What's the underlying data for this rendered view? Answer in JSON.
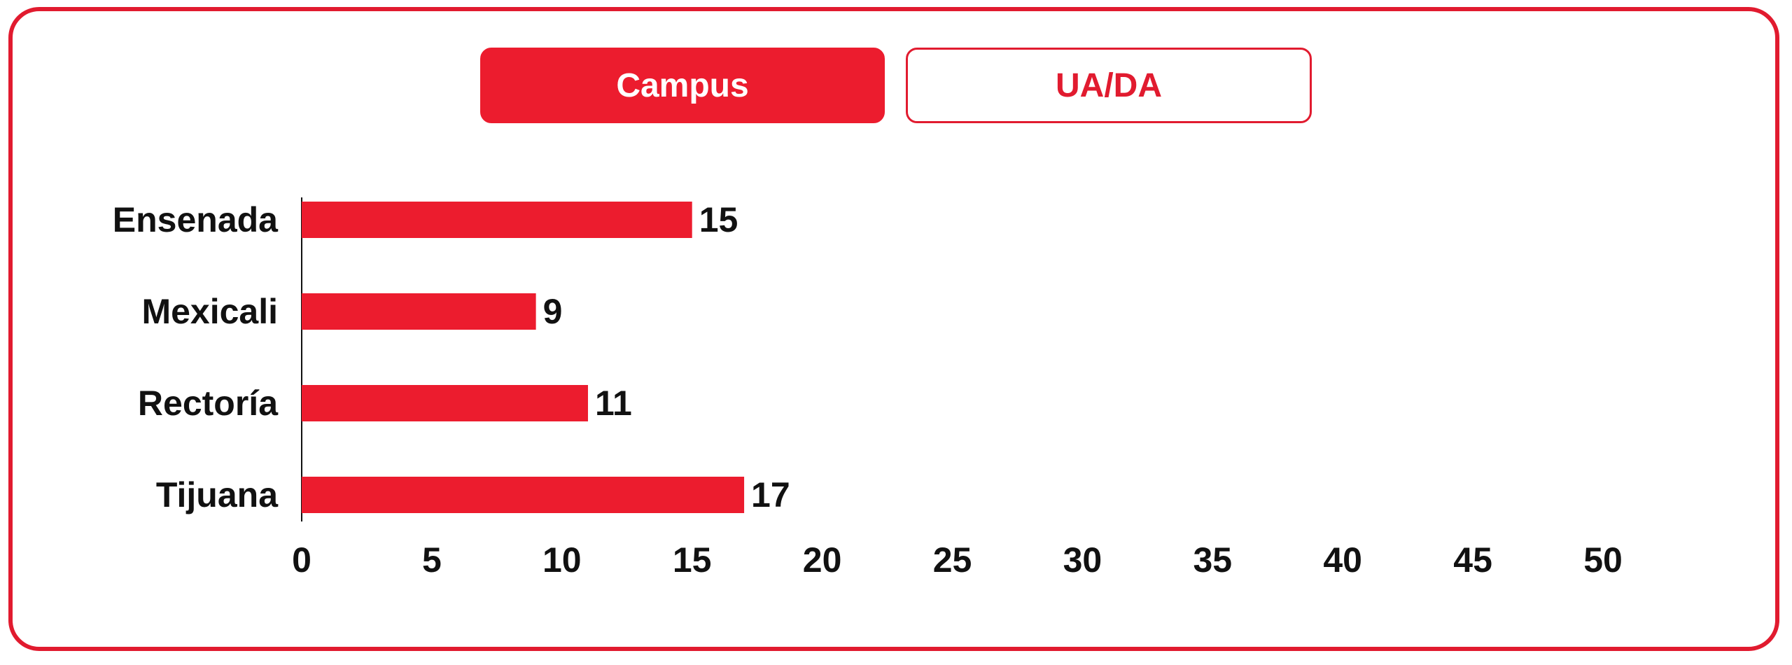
{
  "tabs": [
    {
      "label": "Campus",
      "active": true
    },
    {
      "label": "UA/DA",
      "active": false
    }
  ],
  "colors": {
    "accent": "#ec1c2e",
    "border": "#e11b2f",
    "text": "#111111"
  },
  "chart_data": {
    "type": "bar",
    "orientation": "horizontal",
    "categories": [
      "Ensenada",
      "Mexicali",
      "Rectoría",
      "Tijuana"
    ],
    "values": [
      15,
      9,
      11,
      17
    ],
    "xticks": [
      0,
      5,
      10,
      15,
      20,
      25,
      30,
      35,
      40,
      45,
      50
    ],
    "xlim": [
      0,
      50
    ],
    "data_labels": true,
    "grid": false,
    "title": "",
    "xlabel": "",
    "ylabel": ""
  }
}
